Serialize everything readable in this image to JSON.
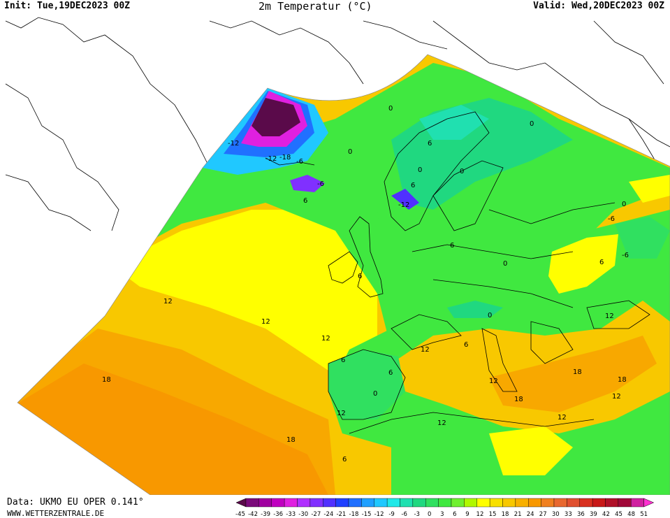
{
  "header": {
    "init": "Init: Tue,19DEC2023 00Z",
    "title": "2m Temperatur (°C)",
    "valid": "Valid: Wed,20DEC2023 00Z"
  },
  "footer": {
    "source": "Data: UKMO EU OPER 0.141°",
    "website": "WWW.WETTERZENTRALE.DE"
  },
  "legend": {
    "ticks": [
      "-45",
      "-42",
      "-39",
      "-36",
      "-33",
      "-30",
      "-27",
      "-24",
      "-21",
      "-18",
      "-15",
      "-12",
      "-9",
      "-6",
      "-3",
      "0",
      "3",
      "6",
      "9",
      "12",
      "15",
      "18",
      "21",
      "24",
      "27",
      "30",
      "33",
      "36",
      "39",
      "42",
      "45",
      "48",
      "51"
    ],
    "colors": [
      "#5a0a4a",
      "#7a0a7a",
      "#a000a0",
      "#c000c0",
      "#e020e0",
      "#b030ff",
      "#8030ff",
      "#5030ff",
      "#2040ff",
      "#2070ff",
      "#20a0ff",
      "#20c8ff",
      "#20e8e8",
      "#20e0b0",
      "#20d880",
      "#30e060",
      "#40e840",
      "#70f030",
      "#b0f800",
      "#ffff00",
      "#f8e000",
      "#f8c800",
      "#f8b000",
      "#f89800",
      "#f08020",
      "#e86830",
      "#e05030",
      "#d83020",
      "#c81818",
      "#b01028",
      "#a00838",
      "#d020a0",
      "#ff30d0"
    ]
  },
  "map": {
    "contour_labels": [
      {
        "text": "0"
      },
      {
        "text": "0"
      },
      {
        "text": "0"
      },
      {
        "text": "0"
      },
      {
        "text": "0"
      },
      {
        "text": "0"
      },
      {
        "text": "0"
      },
      {
        "text": "0"
      },
      {
        "text": "0"
      },
      {
        "text": "-6"
      },
      {
        "text": "-6"
      },
      {
        "text": "-6"
      },
      {
        "text": "-6"
      },
      {
        "text": "-12"
      },
      {
        "text": "-12"
      },
      {
        "text": "-18"
      },
      {
        "text": "-12"
      },
      {
        "text": "6"
      },
      {
        "text": "6"
      },
      {
        "text": "6"
      },
      {
        "text": "6"
      },
      {
        "text": "6"
      },
      {
        "text": "6"
      },
      {
        "text": "6"
      },
      {
        "text": "6"
      },
      {
        "text": "6"
      },
      {
        "text": "6"
      },
      {
        "text": "12"
      },
      {
        "text": "12"
      },
      {
        "text": "12"
      },
      {
        "text": "12"
      },
      {
        "text": "12"
      },
      {
        "text": "12"
      },
      {
        "text": "12"
      },
      {
        "text": "12"
      },
      {
        "text": "12"
      },
      {
        "text": "12"
      },
      {
        "text": "18"
      },
      {
        "text": "18"
      },
      {
        "text": "18"
      },
      {
        "text": "18"
      },
      {
        "text": "18"
      }
    ]
  }
}
